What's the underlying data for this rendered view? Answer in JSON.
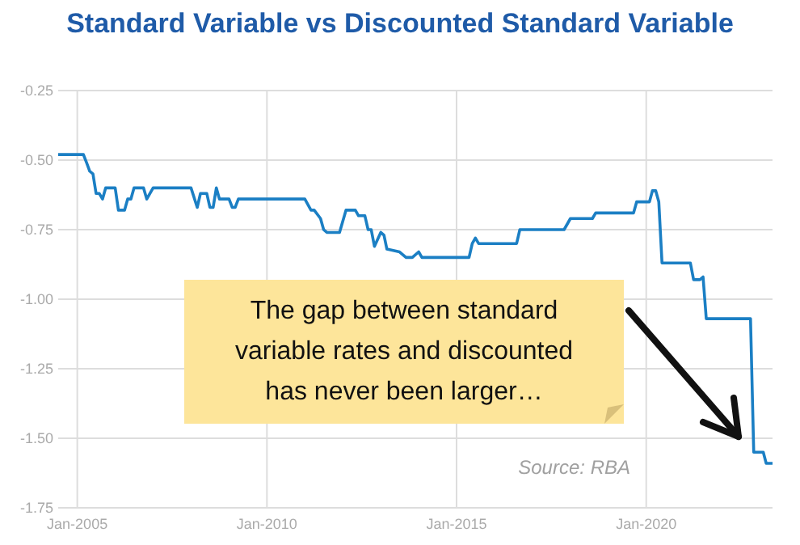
{
  "chart_data": {
    "type": "line",
    "title": "Standard Variable vs Discounted Standard Variable",
    "x": [
      "2004-07",
      "2005-03",
      "2005-04",
      "2005-05",
      "2005-06",
      "2005-07",
      "2005-08",
      "2005-09",
      "2005-10",
      "2006-01",
      "2006-02",
      "2006-04",
      "2006-05",
      "2006-06",
      "2006-07",
      "2006-10",
      "2006-11",
      "2007-01",
      "2008-01",
      "2008-03",
      "2008-04",
      "2008-06",
      "2008-07",
      "2008-08",
      "2008-09",
      "2008-10",
      "2009-01",
      "2009-02",
      "2009-03",
      "2009-04",
      "2011-01",
      "2011-03",
      "2011-04",
      "2011-06",
      "2011-07",
      "2011-08",
      "2011-12",
      "2012-02",
      "2012-05",
      "2012-06",
      "2012-08",
      "2012-09",
      "2012-10",
      "2012-11",
      "2013-01",
      "2013-02",
      "2013-03",
      "2013-07",
      "2013-09",
      "2013-11",
      "2014-01",
      "2014-02",
      "2015-05",
      "2015-06",
      "2015-07",
      "2015-08",
      "2016-08",
      "2016-09",
      "2017-11",
      "2018-01",
      "2018-08",
      "2018-09",
      "2019-09",
      "2019-10",
      "2020-02",
      "2020-03",
      "2020-04",
      "2020-05",
      "2020-06",
      "2021-03",
      "2021-04",
      "2021-06",
      "2021-07",
      "2021-08",
      "2022-10",
      "2022-11",
      "2023-02",
      "2023-03",
      "2023-05"
    ],
    "series": [
      {
        "color": "#1b7fc4",
        "values": [
          -0.48,
          -0.48,
          -0.51,
          -0.54,
          -0.55,
          -0.62,
          -0.62,
          -0.64,
          -0.6,
          -0.6,
          -0.68,
          -0.68,
          -0.64,
          -0.64,
          -0.6,
          -0.6,
          -0.64,
          -0.6,
          -0.6,
          -0.67,
          -0.62,
          -0.62,
          -0.67,
          -0.67,
          -0.6,
          -0.64,
          -0.64,
          -0.67,
          -0.67,
          -0.64,
          -0.64,
          -0.68,
          -0.68,
          -0.71,
          -0.75,
          -0.76,
          -0.76,
          -0.68,
          -0.68,
          -0.7,
          -0.7,
          -0.75,
          -0.75,
          -0.81,
          -0.76,
          -0.77,
          -0.82,
          -0.83,
          -0.85,
          -0.85,
          -0.83,
          -0.85,
          -0.85,
          -0.8,
          -0.78,
          -0.8,
          -0.8,
          -0.75,
          -0.75,
          -0.71,
          -0.71,
          -0.69,
          -0.69,
          -0.65,
          -0.65,
          -0.61,
          -0.61,
          -0.65,
          -0.87,
          -0.87,
          -0.93,
          -0.93,
          -0.92,
          -1.07,
          -1.07,
          -1.55,
          -1.55,
          -1.59,
          -1.59
        ]
      }
    ],
    "xlim": [
      "2004-07",
      "2023-05"
    ],
    "xticks": [
      {
        "value": "2005-01",
        "label": "Jan-2005"
      },
      {
        "value": "2010-01",
        "label": "Jan-2010"
      },
      {
        "value": "2015-01",
        "label": "Jan-2015"
      },
      {
        "value": "2020-01",
        "label": "Jan-2020"
      }
    ],
    "ylim": [
      -1.75,
      -0.25
    ],
    "yticks": [
      -0.25,
      {
        "value": -0.5,
        "label": "-0.50"
      },
      -0.75,
      {
        "value": -1,
        "label": "-1.00"
      },
      -1.25,
      {
        "value": -1.5,
        "label": "-1.50"
      },
      -1.75
    ],
    "grid": true,
    "annotations": [
      "The gap between standard variable rates and discounted has never been larger…",
      "Source: RBA"
    ]
  }
}
